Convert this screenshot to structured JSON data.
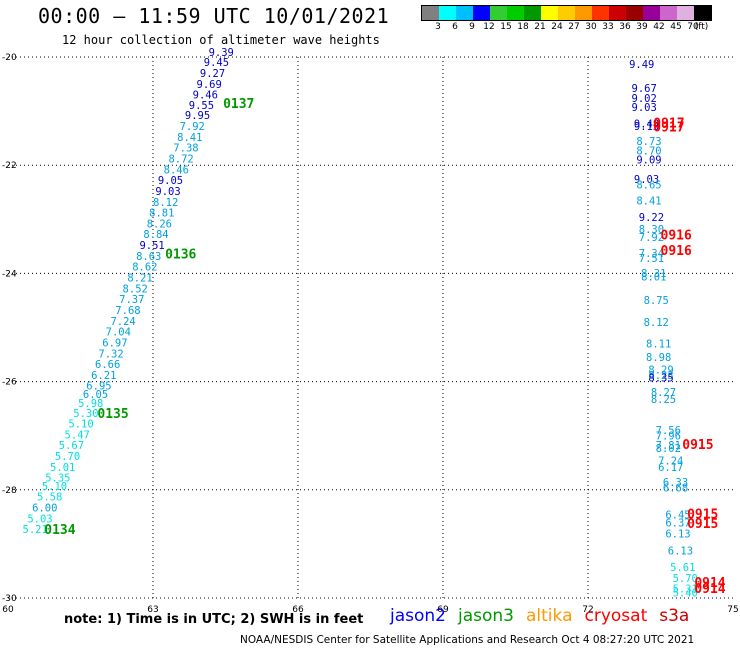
{
  "title": "00:00 – 11:59 UTC 10/01/2021",
  "subtitle": "12 hour collection of altimeter wave heights",
  "scale": {
    "colors": [
      "#808080",
      "#00ffff",
      "#00bfff",
      "#0000ff",
      "#33cc33",
      "#00cc00",
      "#009900",
      "#ffff00",
      "#ffcc00",
      "#ff9900",
      "#ff3300",
      "#cc0000",
      "#990000",
      "#990099",
      "#cc66cc",
      "#e0b0e0",
      "#000000"
    ],
    "labels": [
      "3",
      "6",
      "9",
      "12",
      "15",
      "18",
      "21",
      "24",
      "27",
      "30",
      "33",
      "36",
      "39",
      "42",
      "45",
      "70",
      "(ft)"
    ]
  },
  "axes": {
    "lon_ticks": [
      "60",
      "63",
      "66",
      "69",
      "72",
      "75"
    ],
    "lat_ticks": [
      "-20",
      "-22",
      "-24",
      "-26",
      "-28",
      "-30"
    ]
  },
  "missions": [
    {
      "name": "jason2",
      "color": "#0000ff"
    },
    {
      "name": "jason3",
      "color": "#009900"
    },
    {
      "name": "altika",
      "color": "#ff9900"
    },
    {
      "name": "cryosat",
      "color": "#ff0000"
    },
    {
      "name": "s3a",
      "color": "#cc0000"
    }
  ],
  "note": "note: 1) Time is in UTC; 2) SWH is in feet",
  "credit": "NOAA/NESDIS Center for Satellite Applications and Research   Oct  4 08:27:20 UTC 2021",
  "track_labels": [
    {
      "text": "0137",
      "color": "#009900",
      "lon": 64.45,
      "lat": -20.94
    },
    {
      "text": "0136",
      "color": "#009900",
      "lon": 63.25,
      "lat": -23.72
    },
    {
      "text": "0135",
      "color": "#009900",
      "lon": 61.85,
      "lat": -26.67
    },
    {
      "text": "0134",
      "color": "#009900",
      "lon": 60.75,
      "lat": -28.82
    },
    {
      "text": "0917",
      "color": "#ff0000",
      "lon": 73.35,
      "lat": -21.3
    },
    {
      "text": "0917",
      "color": "#ff0000",
      "lon": 73.35,
      "lat": -21.38
    },
    {
      "text": "0916",
      "color": "#ff0000",
      "lon": 73.5,
      "lat": -23.37
    },
    {
      "text": "0916",
      "color": "#ff0000",
      "lon": 73.5,
      "lat": -23.66
    },
    {
      "text": "0915",
      "color": "#ff0000",
      "lon": 73.95,
      "lat": -27.25
    },
    {
      "text": "0915",
      "color": "#ff0000",
      "lon": 74.05,
      "lat": -28.53
    },
    {
      "text": "0915",
      "color": "#ff0000",
      "lon": 74.05,
      "lat": -28.71
    },
    {
      "text": "0914",
      "color": "#ff0000",
      "lon": 74.2,
      "lat": -29.8
    },
    {
      "text": "0914",
      "color": "#ff0000",
      "lon": 74.2,
      "lat": -29.91
    }
  ],
  "observations": [
    {
      "v": "9.39",
      "lon": 64.15,
      "lat": -19.98,
      "c": "#0000cc"
    },
    {
      "v": "9.45",
      "lon": 64.05,
      "lat": -20.17,
      "c": "#0000cc"
    },
    {
      "v": "9.27",
      "lon": 63.97,
      "lat": -20.37,
      "c": "#0000cc"
    },
    {
      "v": "9.69",
      "lon": 63.9,
      "lat": -20.57,
      "c": "#0000cc"
    },
    {
      "v": "9.46",
      "lon": 63.82,
      "lat": -20.77,
      "c": "#0000cc"
    },
    {
      "v": "9.55",
      "lon": 63.74,
      "lat": -20.96,
      "c": "#0000cc"
    },
    {
      "v": "9.95",
      "lon": 63.66,
      "lat": -21.15,
      "c": "#0000cc"
    },
    {
      "v": "7.92",
      "lon": 63.55,
      "lat": -21.35,
      "c": "#00a0e0"
    },
    {
      "v": "8.41",
      "lon": 63.5,
      "lat": -21.55,
      "c": "#00a0e0"
    },
    {
      "v": "7.38",
      "lon": 63.42,
      "lat": -21.75,
      "c": "#00a0e0"
    },
    {
      "v": "8.72",
      "lon": 63.32,
      "lat": -21.95,
      "c": "#00a0e0"
    },
    {
      "v": "8.46",
      "lon": 63.22,
      "lat": -22.15,
      "c": "#00a0e0"
    },
    {
      "v": "9.05",
      "lon": 63.1,
      "lat": -22.35,
      "c": "#0000cc"
    },
    {
      "v": "9.03",
      "lon": 63.05,
      "lat": -22.55,
      "c": "#0000cc"
    },
    {
      "v": "8.12",
      "lon": 63.0,
      "lat": -22.75,
      "c": "#00a0e0"
    },
    {
      "v": "8.81",
      "lon": 62.92,
      "lat": -22.95,
      "c": "#00a0e0"
    },
    {
      "v": "8.26",
      "lon": 62.87,
      "lat": -23.15,
      "c": "#00a0e0"
    },
    {
      "v": "8.84",
      "lon": 62.8,
      "lat": -23.35,
      "c": "#00a0e0"
    },
    {
      "v": "9.51",
      "lon": 62.72,
      "lat": -23.55,
      "c": "#0000cc"
    },
    {
      "v": "8.63",
      "lon": 62.65,
      "lat": -23.75,
      "c": "#00a0e0"
    },
    {
      "v": "8.62",
      "lon": 62.57,
      "lat": -23.95,
      "c": "#00a0e0"
    },
    {
      "v": "8.21",
      "lon": 62.47,
      "lat": -24.15,
      "c": "#00a0e0"
    },
    {
      "v": "8.52",
      "lon": 62.37,
      "lat": -24.35,
      "c": "#00a0e0"
    },
    {
      "v": "7.37",
      "lon": 62.3,
      "lat": -24.55,
      "c": "#00a0e0"
    },
    {
      "v": "7.68",
      "lon": 62.22,
      "lat": -24.75,
      "c": "#00a0e0"
    },
    {
      "v": "7.24",
      "lon": 62.12,
      "lat": -24.95,
      "c": "#00a0e0"
    },
    {
      "v": "7.04",
      "lon": 62.02,
      "lat": -25.15,
      "c": "#00a0e0"
    },
    {
      "v": "6.97",
      "lon": 61.95,
      "lat": -25.35,
      "c": "#00a0e0"
    },
    {
      "v": "7.32",
      "lon": 61.87,
      "lat": -25.55,
      "c": "#00a0e0"
    },
    {
      "v": "6.66",
      "lon": 61.8,
      "lat": -25.75,
      "c": "#00a0e0"
    },
    {
      "v": "6.21",
      "lon": 61.72,
      "lat": -25.95,
      "c": "#00a0e0"
    },
    {
      "v": "6.95",
      "lon": 61.62,
      "lat": -26.15,
      "c": "#00a0e0"
    },
    {
      "v": "6.05",
      "lon": 61.55,
      "lat": -26.3,
      "c": "#00a0e0"
    },
    {
      "v": "5.98",
      "lon": 61.45,
      "lat": -26.47,
      "c": "#00e0e0"
    },
    {
      "v": "5.30",
      "lon": 61.35,
      "lat": -26.65,
      "c": "#00e0e0"
    },
    {
      "v": "5.10",
      "lon": 61.25,
      "lat": -26.85,
      "c": "#00e0e0"
    },
    {
      "v": "5.47",
      "lon": 61.17,
      "lat": -27.05,
      "c": "#00e0e0"
    },
    {
      "v": "5.67",
      "lon": 61.05,
      "lat": -27.25,
      "c": "#00e0e0"
    },
    {
      "v": "5.70",
      "lon": 60.97,
      "lat": -27.45,
      "c": "#00e0e0"
    },
    {
      "v": "5.01",
      "lon": 60.87,
      "lat": -27.65,
      "c": "#00e0e0"
    },
    {
      "v": "5.35",
      "lon": 60.77,
      "lat": -27.85,
      "c": "#00e0e0"
    },
    {
      "v": "5.10",
      "lon": 60.7,
      "lat": -28.0,
      "c": "#00e0e0"
    },
    {
      "v": "5.58",
      "lon": 60.6,
      "lat": -28.2,
      "c": "#00e0e0"
    },
    {
      "v": "6.00",
      "lon": 60.5,
      "lat": -28.4,
      "c": "#00a0e0"
    },
    {
      "v": "5.03",
      "lon": 60.4,
      "lat": -28.6,
      "c": "#00e0e0"
    },
    {
      "v": "5.21",
      "lon": 60.3,
      "lat": -28.8,
      "c": "#00e0e0"
    },
    {
      "v": "9.49",
      "lon": 72.85,
      "lat": -20.2,
      "c": "#0000cc"
    },
    {
      "v": "9.67",
      "lon": 72.9,
      "lat": -20.65,
      "c": "#0000cc"
    },
    {
      "v": "9.02",
      "lon": 72.9,
      "lat": -20.83,
      "c": "#0000cc"
    },
    {
      "v": "9.03",
      "lon": 72.9,
      "lat": -21.0,
      "c": "#0000cc"
    },
    {
      "v": "9.48",
      "lon": 72.95,
      "lat": -21.3,
      "c": "#0000cc"
    },
    {
      "v": "9.13",
      "lon": 72.95,
      "lat": -21.35,
      "c": "#0000cc"
    },
    {
      "v": "8.73",
      "lon": 73.0,
      "lat": -21.63,
      "c": "#00a0e0"
    },
    {
      "v": "8.70",
      "lon": 73.0,
      "lat": -21.8,
      "c": "#00a0e0"
    },
    {
      "v": "9.09",
      "lon": 73.0,
      "lat": -21.97,
      "c": "#0000cc"
    },
    {
      "v": "9.03",
      "lon": 72.95,
      "lat": -22.33,
      "c": "#0000cc"
    },
    {
      "v": "8.65",
      "lon": 73.0,
      "lat": -22.43,
      "c": "#00a0e0"
    },
    {
      "v": "8.41",
      "lon": 73.0,
      "lat": -22.73,
      "c": "#00a0e0"
    },
    {
      "v": "9.22",
      "lon": 73.05,
      "lat": -23.03,
      "c": "#0000cc"
    },
    {
      "v": "8.30",
      "lon": 73.05,
      "lat": -23.25,
      "c": "#00a0e0"
    },
    {
      "v": "7.92",
      "lon": 73.05,
      "lat": -23.4,
      "c": "#00a0e0"
    },
    {
      "v": "7.34",
      "lon": 73.05,
      "lat": -23.7,
      "c": "#00a0e0"
    },
    {
      "v": "7.51",
      "lon": 73.05,
      "lat": -23.79,
      "c": "#00a0e0"
    },
    {
      "v": "8.31",
      "lon": 73.1,
      "lat": -24.07,
      "c": "#00a0e0"
    },
    {
      "v": "8.01",
      "lon": 73.1,
      "lat": -24.13,
      "c": "#00a0e0"
    },
    {
      "v": "8.75",
      "lon": 73.15,
      "lat": -24.57,
      "c": "#00a0e0"
    },
    {
      "v": "8.12",
      "lon": 73.15,
      "lat": -24.97,
      "c": "#00a0e0"
    },
    {
      "v": "8.11",
      "lon": 73.2,
      "lat": -25.37,
      "c": "#00a0e0"
    },
    {
      "v": "8.98",
      "lon": 73.2,
      "lat": -25.62,
      "c": "#00a0e0"
    },
    {
      "v": "8.29",
      "lon": 73.25,
      "lat": -25.85,
      "c": "#00a0e0"
    },
    {
      "v": "8.23",
      "lon": 73.25,
      "lat": -25.95,
      "c": "#00a0e0"
    },
    {
      "v": "8.35",
      "lon": 73.25,
      "lat": -26.0,
      "c": "#0000cc"
    },
    {
      "v": "8.27",
      "lon": 73.3,
      "lat": -26.27,
      "c": "#00a0e0"
    },
    {
      "v": "8.25",
      "lon": 73.3,
      "lat": -26.4,
      "c": "#00a0e0"
    },
    {
      "v": "7.56",
      "lon": 73.4,
      "lat": -26.97,
      "c": "#00a0e0"
    },
    {
      "v": "7.96",
      "lon": 73.4,
      "lat": -27.07,
      "c": "#00a0e0"
    },
    {
      "v": "7.81",
      "lon": 73.4,
      "lat": -27.25,
      "c": "#00a0e0"
    },
    {
      "v": "8.02",
      "lon": 73.4,
      "lat": -27.3,
      "c": "#00a0e0"
    },
    {
      "v": "7.24",
      "lon": 73.45,
      "lat": -27.53,
      "c": "#00a0e0"
    },
    {
      "v": "6.17",
      "lon": 73.45,
      "lat": -27.65,
      "c": "#00a0e0"
    },
    {
      "v": "6.33",
      "lon": 73.55,
      "lat": -27.93,
      "c": "#00a0e0"
    },
    {
      "v": "6.68",
      "lon": 73.55,
      "lat": -28.03,
      "c": "#00a0e0"
    },
    {
      "v": "6.45",
      "lon": 73.6,
      "lat": -28.53,
      "c": "#00a0e0"
    },
    {
      "v": "6.37",
      "lon": 73.6,
      "lat": -28.68,
      "c": "#00a0e0"
    },
    {
      "v": "6.13",
      "lon": 73.6,
      "lat": -28.88,
      "c": "#00a0e0"
    },
    {
      "v": "6.13",
      "lon": 73.65,
      "lat": -29.2,
      "c": "#00a0e0"
    },
    {
      "v": "5.61",
      "lon": 73.7,
      "lat": -29.5,
      "c": "#00e0e0"
    },
    {
      "v": "5.70",
      "lon": 73.75,
      "lat": -29.7,
      "c": "#00e0e0"
    },
    {
      "v": "5.31",
      "lon": 73.75,
      "lat": -29.9,
      "c": "#00e0e0"
    },
    {
      "v": "5.40",
      "lon": 73.75,
      "lat": -29.97,
      "c": "#00e0e0"
    }
  ]
}
